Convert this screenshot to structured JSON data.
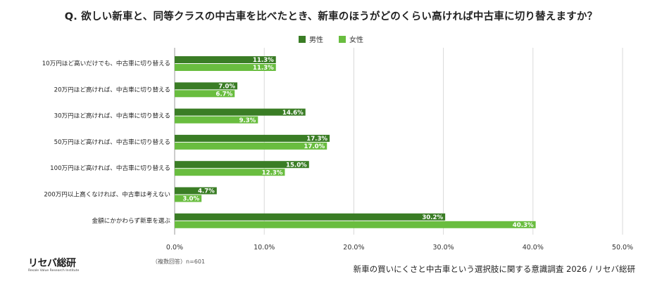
{
  "title": "Q. 欲しい新車と、同等クラスの中古車を比べたとき、新車のほうがどのくらい高ければ中古車に切り替えますか？",
  "colors": {
    "male": "#3a7d25",
    "female": "#69bd3f",
    "grid": "#d9d9d9",
    "axis": "#9a9a9a",
    "label_text": "#ffffff"
  },
  "chart_data": {
    "type": "bar",
    "orientation": "horizontal",
    "title": "Q. 欲しい新車と、同等クラスの中古車を比べたとき、新車のほうがどのくらい高ければ中古車に切り替えますか？",
    "categories": [
      "10万円ほど高いだけでも、中古車に切り替える",
      "20万円ほど高ければ、中古車に切り替える",
      "30万円ほど高ければ、中古車に切り替える",
      "50万円ほど高ければ、中古車に切り替える",
      "100万円ほど高ければ、中古車に切り替える",
      "200万円以上高くなければ、中古車は考えない",
      "金額にかかわらず新車を選ぶ"
    ],
    "series": [
      {
        "name": "男性",
        "values": [
          11.3,
          7.0,
          14.6,
          17.3,
          15.0,
          4.7,
          30.2
        ]
      },
      {
        "name": "女性",
        "values": [
          11.3,
          6.7,
          9.3,
          17.0,
          12.3,
          3.0,
          40.3
        ]
      }
    ],
    "xlim": [
      0,
      50
    ],
    "ticks": [
      "0.0%",
      "10.0%",
      "20.0%",
      "30.0%",
      "40.0%",
      "50.0%"
    ],
    "value_suffix": "%",
    "grid": true,
    "legend_position": "top-center"
  },
  "footnote": "（複数回答）n=601",
  "source": "新車の買いにくさと中古車という選択肢に関する意識調査 2026 / リセバ総研",
  "logo": {
    "text": "リセバ総研",
    "subtitle": "Resale Value Research Institute"
  }
}
